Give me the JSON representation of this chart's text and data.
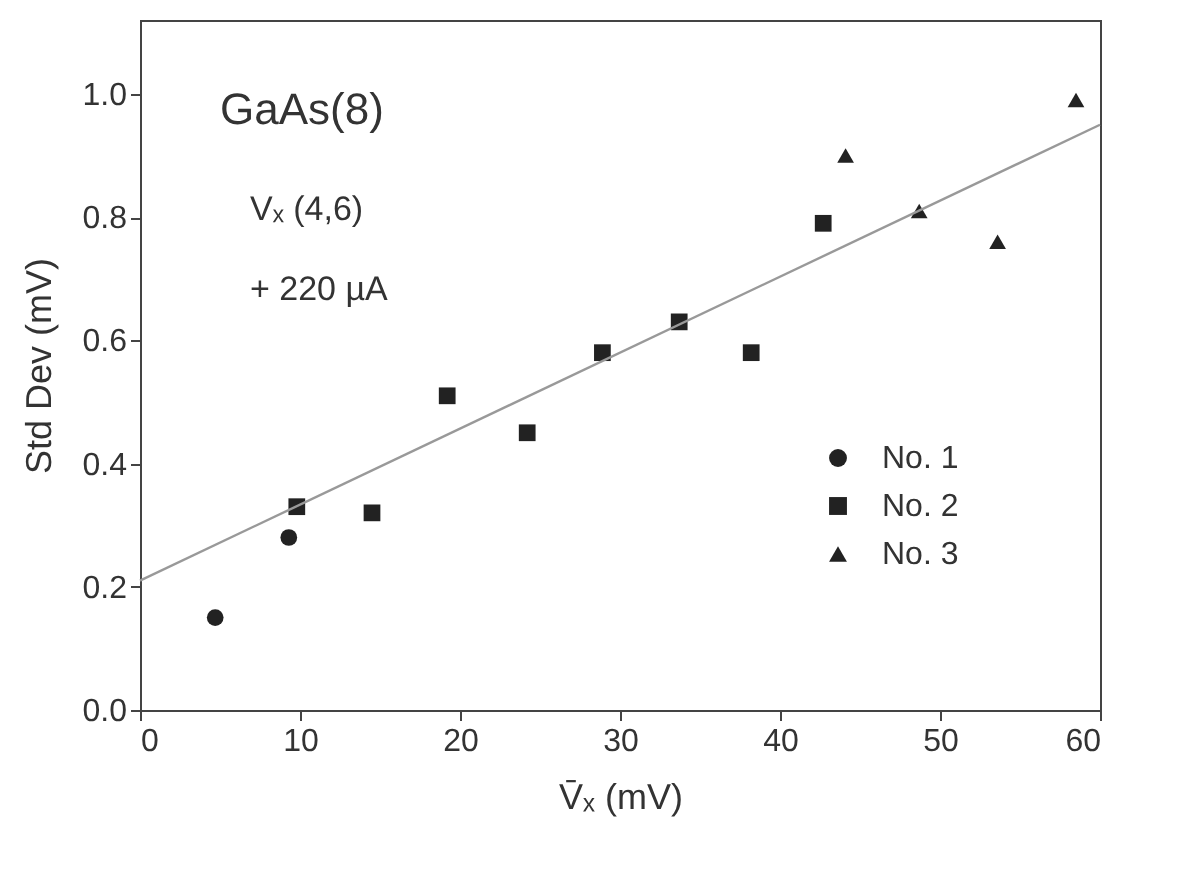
{
  "chart_data": {
    "type": "scatter",
    "xlabel": "V̄ₓ   (mV)",
    "ylabel": "Std Dev   (mV)",
    "annotations": [
      "GaAs(8)",
      "Vₓ (4,6)",
      "+ 220 µA"
    ],
    "xlim": [
      0,
      60
    ],
    "xticks": [
      0,
      10,
      20,
      30,
      40,
      50,
      60
    ],
    "ylim": [
      0,
      1.12
    ],
    "yticks": [
      {
        "value": 0,
        "label": "0.0"
      },
      0.2,
      0.4,
      0.6,
      0.8,
      {
        "value": 1,
        "label": "1.0"
      }
    ],
    "grid": false,
    "legend": "bottom right",
    "series": [
      {
        "name": "No. 1",
        "color": "#222222",
        "marker": "circle",
        "x": [
          4.7,
          9.3
        ],
        "values": [
          0.15,
          0.28
        ]
      },
      {
        "name": "No. 2",
        "color": "#222222",
        "marker": "square",
        "x": [
          9.8,
          14.5,
          19.2,
          24.2,
          28.9,
          33.7,
          38.2,
          42.7
        ],
        "values": [
          0.33,
          0.32,
          0.51,
          0.45,
          0.58,
          0.63,
          0.58,
          0.79
        ]
      },
      {
        "name": "No. 3",
        "color": "#222222",
        "marker": "triangle",
        "x": [
          44.1,
          48.7,
          53.6,
          58.5
        ],
        "values": [
          0.9,
          0.81,
          0.76,
          0.99
        ]
      },
      {
        "type": "line",
        "color": "#999999",
        "x": [
          0,
          60
        ],
        "values": [
          0.21,
          0.95
        ]
      }
    ]
  }
}
